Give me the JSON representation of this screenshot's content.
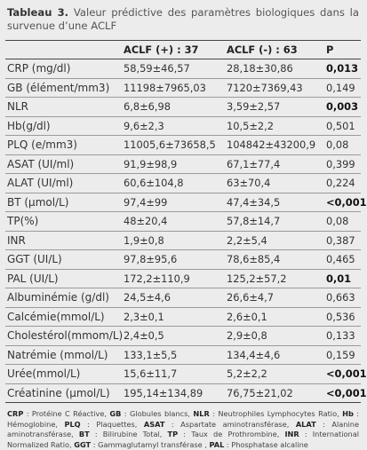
{
  "caption": {
    "label": "Tableau 3.",
    "text": " Valeur prédictive des paramètres biologiques dans la survenue d’une ACLF"
  },
  "table": {
    "headers": [
      "",
      "ACLF (+) : 37",
      "ACLF (-) : 63",
      "P"
    ],
    "rows": [
      {
        "param": "CRP (mg/dl)",
        "pos": "58,59±46,57",
        "neg": "28,18±30,86",
        "p": "0,013",
        "sig": true
      },
      {
        "param": "GB (élément/mm3)",
        "pos": "11198±7965,03",
        "neg": "7120±7369,43",
        "p": "0,149",
        "sig": false
      },
      {
        "param": "NLR",
        "pos": "6,8±6,98",
        "neg": "3,59±2,57",
        "p": "0,003",
        "sig": true
      },
      {
        "param": "Hb(g/dl)",
        "pos": "9,6±2,3",
        "neg": "10,5±2,2",
        "p": "0,501",
        "sig": false
      },
      {
        "param": "PLQ (e/mm3)",
        "pos": "11005,6±73658,5",
        "neg": "104842±43200,9",
        "p": "0,08",
        "sig": false
      },
      {
        "param": "ASAT (UI/ml)",
        "pos": "91,9±98,9",
        "neg": "67,1±77,4",
        "p": "0,399",
        "sig": false
      },
      {
        "param": "ALAT (UI/ml)",
        "pos": "60,6±104,8",
        "neg": "63±70,4",
        "p": "0,224",
        "sig": false
      },
      {
        "param": "BT (μmol/L)",
        "pos": "97,4±99",
        "neg": "47,4±34,5",
        "p": "<0,001",
        "sig": true
      },
      {
        "param": "TP(%)",
        "pos": "48±20,4",
        "neg": "57,8±14,7",
        "p": "0,08",
        "sig": false
      },
      {
        "param": "INR",
        "pos": "1,9±0,8",
        "neg": "2,2±5,4",
        "p": "0,387",
        "sig": false
      },
      {
        "param": "GGT (UI/L)",
        "pos": "97,8±95,6",
        "neg": "78,6±85,4",
        "p": "0,465",
        "sig": false
      },
      {
        "param": "PAL (UI/L)",
        "pos": "172,2±110,9",
        "neg": "125,2±57,2",
        "p": "0,01",
        "sig": true
      },
      {
        "param": "Albuminémie (g/dl)",
        "pos": "24,5±4,6",
        "neg": "26,6±4,7",
        "p": "0,663",
        "sig": false
      },
      {
        "param": "Calcémie(mmol/L)",
        "pos": "2,3±0,1",
        "neg": "2,6±0,1",
        "p": "0,536",
        "sig": false
      },
      {
        "param": "Cholestérol(mmom/L)",
        "pos": "2,4±0,5",
        "neg": "2,9±0,8",
        "p": "0,133",
        "sig": false
      },
      {
        "param": "Natrémie (mmol/L)",
        "pos": "133,1±5,5",
        "neg": "134,4±4,6",
        "p": "0,159",
        "sig": false
      },
      {
        "param": "Urée(mmol/L)",
        "pos": "15,6±11,7",
        "neg": "5,2±2,2",
        "p": "<0,001",
        "sig": true
      },
      {
        "param": "Créatinine (μmol/L)",
        "pos": "195,14±134,89",
        "neg": "76,75±21,02",
        "p": "<0,001",
        "sig": true
      }
    ]
  },
  "abbreviations": [
    {
      "abbr": "CRP",
      "def": " : Protéine C Réactive, "
    },
    {
      "abbr": "GB",
      "def": " : Globules blancs, "
    },
    {
      "abbr": "NLR",
      "def": " : Neutrophiles Lymphocytes Ratio, "
    },
    {
      "abbr": "Hb",
      "def": " : Hémoglobine, "
    },
    {
      "abbr": "PLQ",
      "def": " : Plaquettes, "
    },
    {
      "abbr": "ASAT",
      "def": " : Aspartate aminotransférase, "
    },
    {
      "abbr": "ALAT",
      "def": " : Alanine aminotransférase, "
    },
    {
      "abbr": "BT",
      "def": " : Bilirubine Total, "
    },
    {
      "abbr": "TP",
      "def": " : Taux de Prothrombine, "
    },
    {
      "abbr": "INR",
      "def": " : International Normalized Ratio, "
    },
    {
      "abbr": "GGT",
      "def": " : Gammaglutamyl transférase , "
    },
    {
      "abbr": "PAL",
      "def": " : Phosphatase alcaline"
    }
  ]
}
